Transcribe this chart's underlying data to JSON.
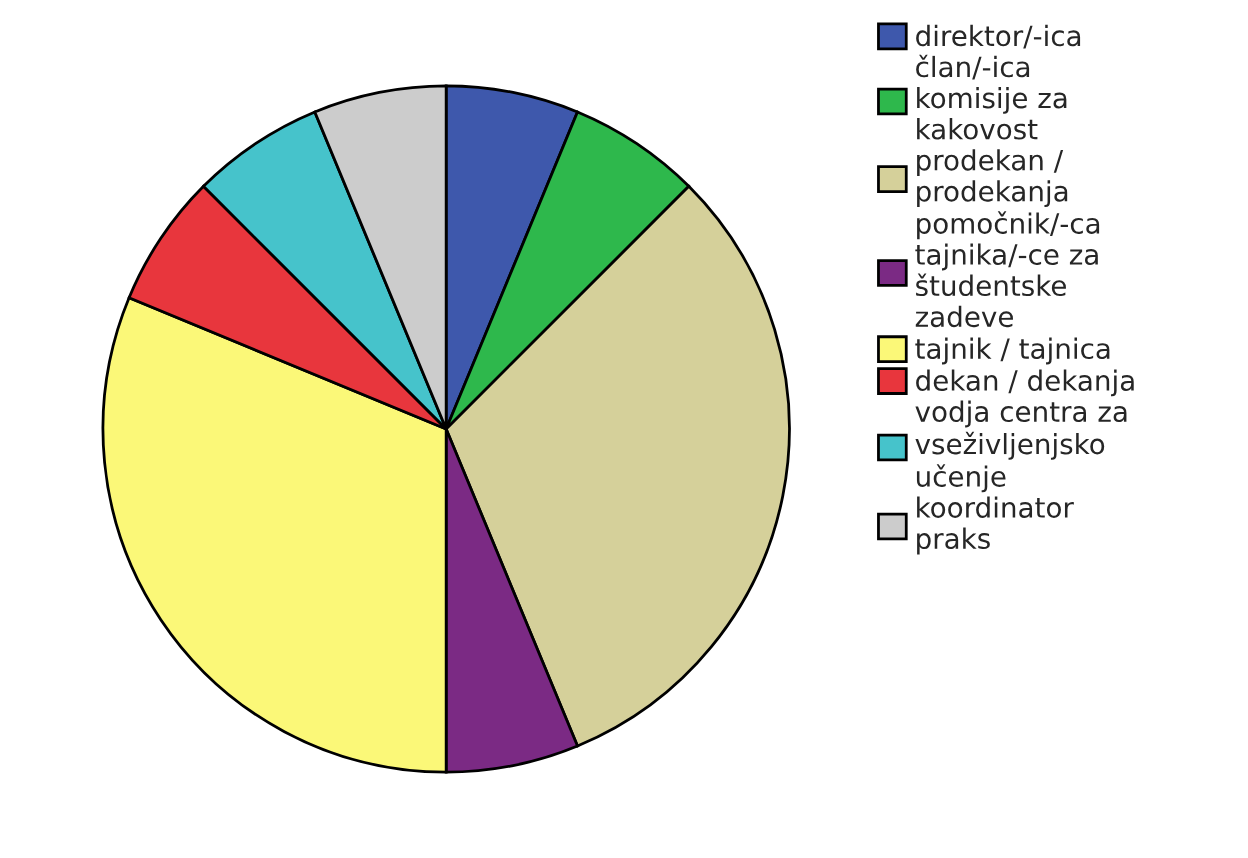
{
  "chart_data": {
    "type": "pie",
    "categories": [
      "direktor/-ica",
      "član/-ica\nkomisije za\nkakovost",
      "prodekan /\nprodekanja",
      "pomočnik/-ca\ntajnika/-ce za\nštudentske\nzadeve",
      "tajnik / tajnica",
      "dekan / dekanja",
      "vodja centra za\nvseživljenjsko\nučenje",
      "koordinator\npraks"
    ],
    "values": [
      6.25,
      6.25,
      31.25,
      6.25,
      31.25,
      6.25,
      6.25,
      6.25
    ],
    "colors": [
      "#3e58ac",
      "#2eb84c",
      "#d5d09a",
      "#7b2a84",
      "#fbf878",
      "#e8363d",
      "#46c3cb",
      "#cccccc"
    ],
    "legend": "top right"
  }
}
